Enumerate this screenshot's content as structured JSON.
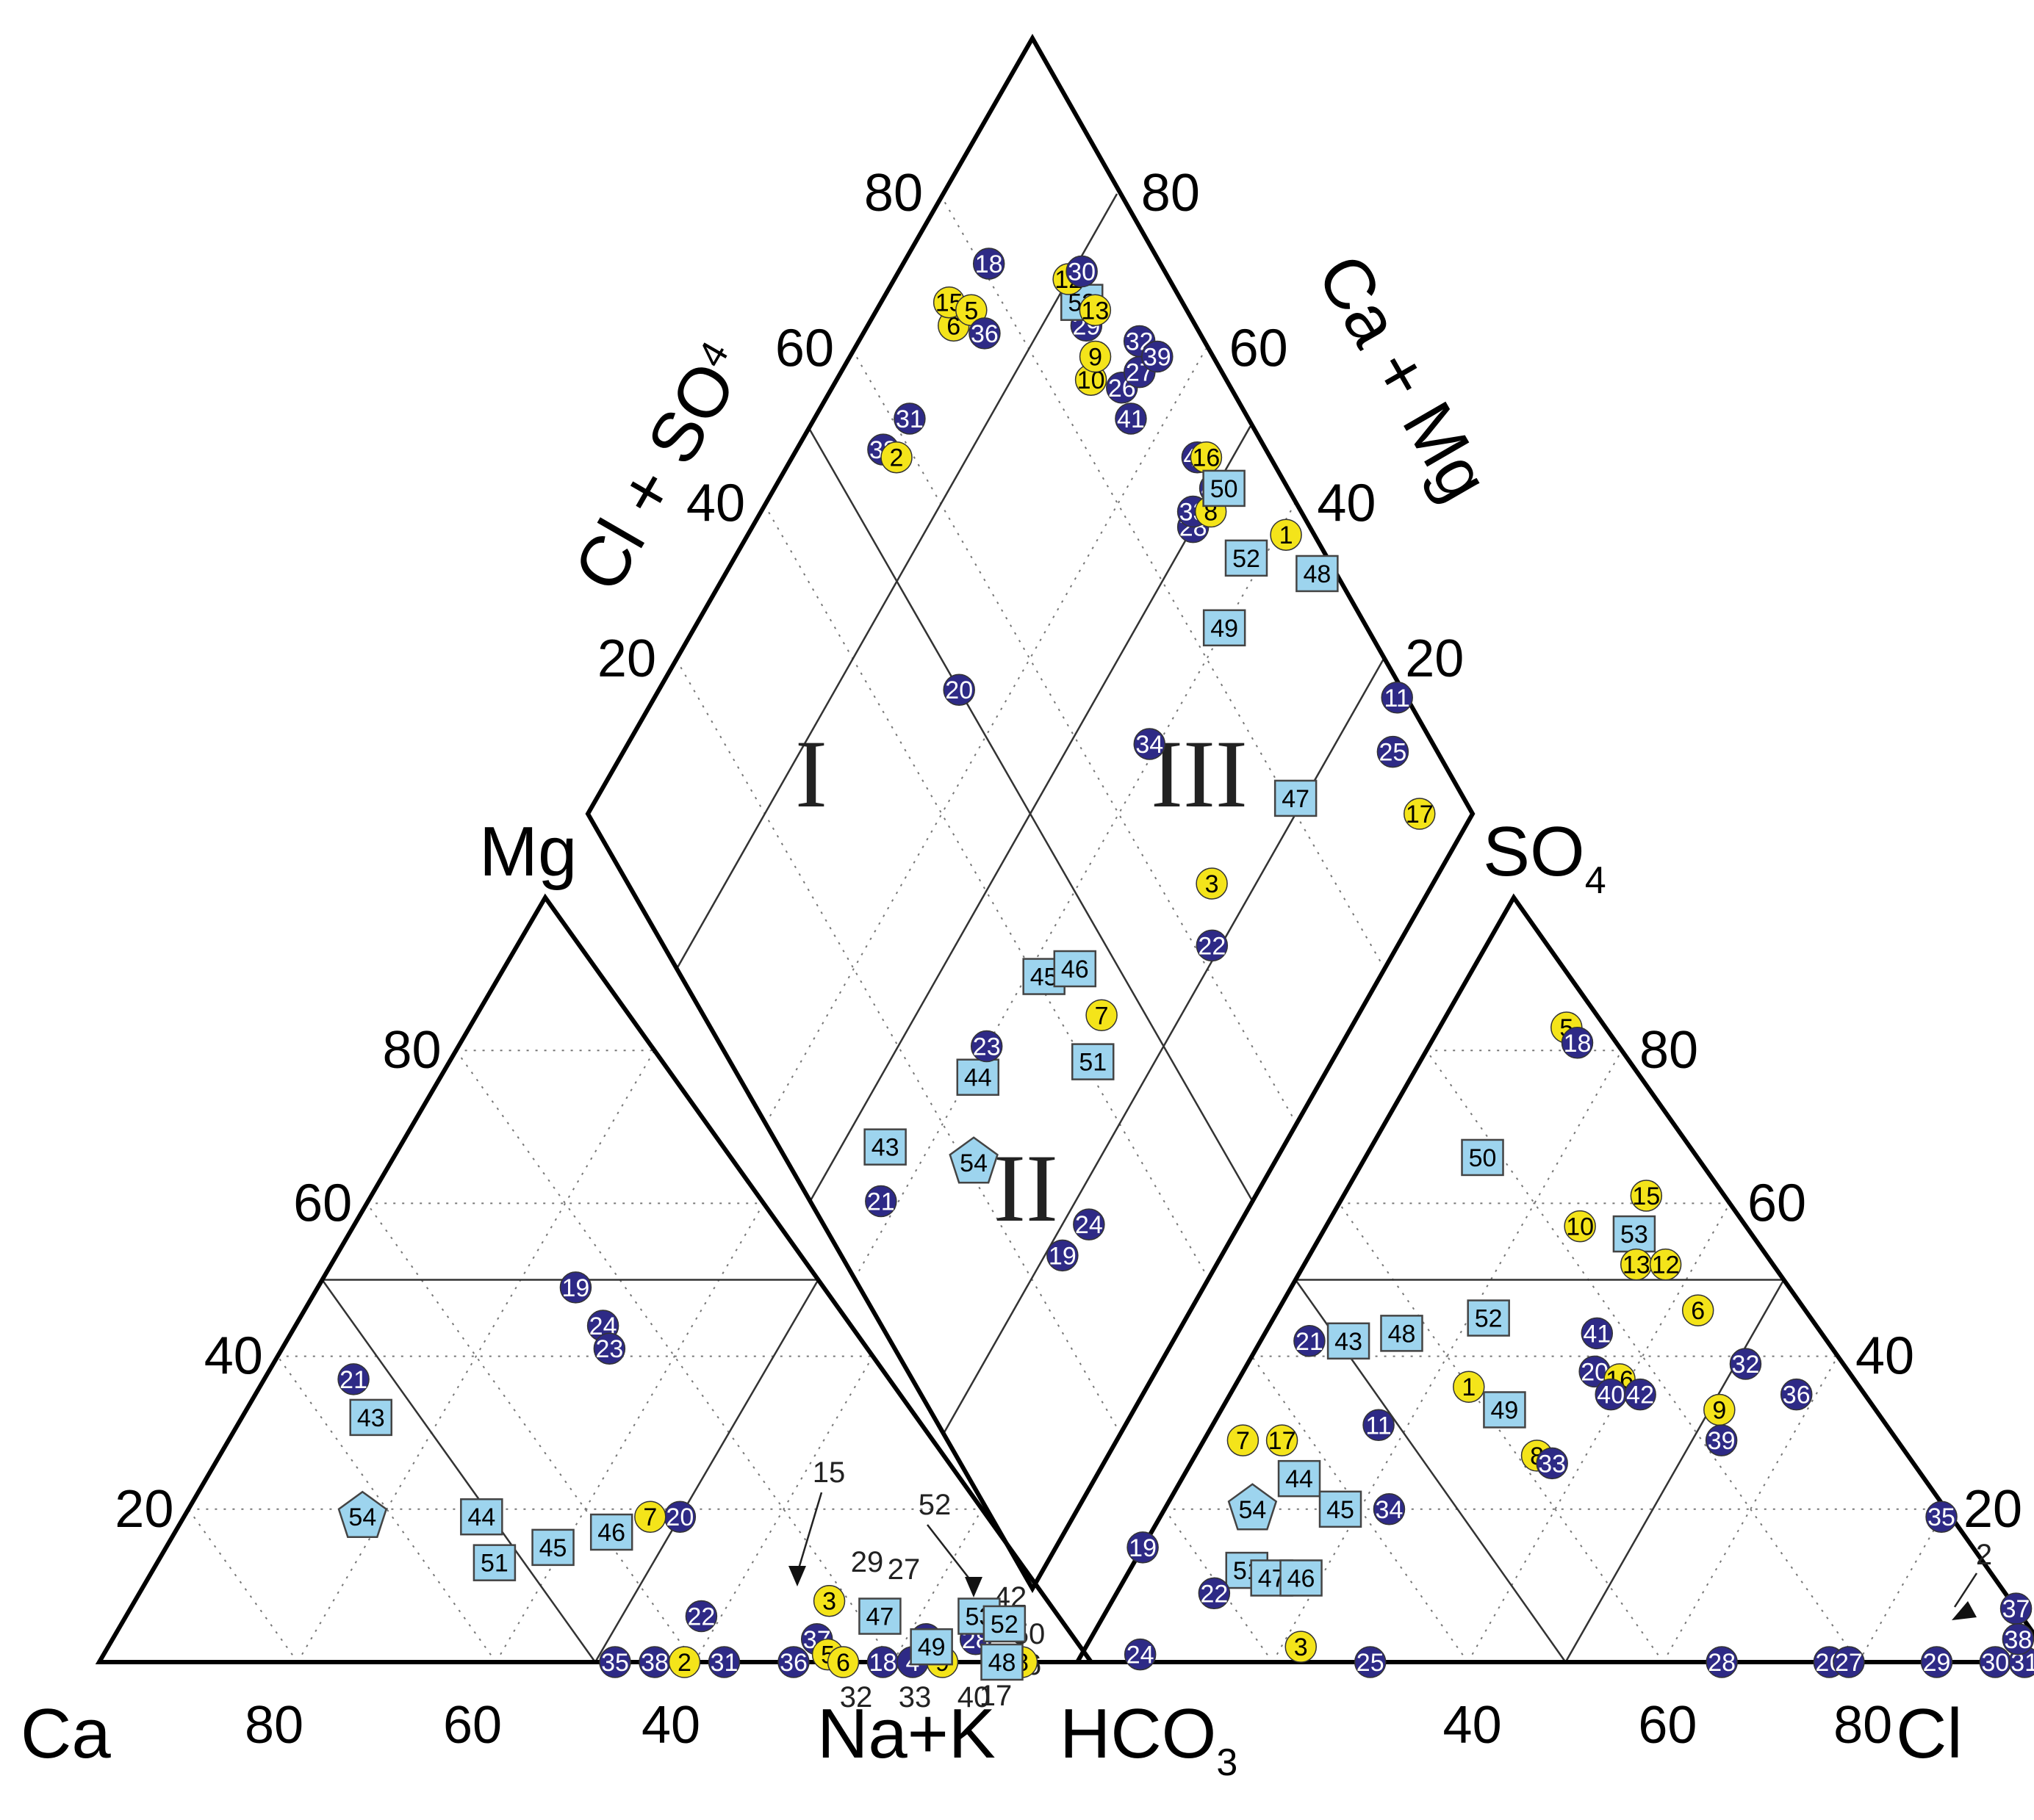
{
  "chart_data": {
    "type": "scatter",
    "subtype": "piper-trilinear",
    "series": [
      {
        "name": "group-circles-blue",
        "marker": "circle",
        "fill": "#2e2a86",
        "text_color": "#ffffff"
      },
      {
        "name": "group-circles-yellow",
        "marker": "circle",
        "fill": "#f4e41a",
        "text_color": "#000000"
      },
      {
        "name": "group-squares",
        "marker": "square",
        "fill": "#9dd4ee",
        "text_color": "#000000"
      },
      {
        "name": "group-pentagon",
        "marker": "pentagon",
        "fill": "#9dd4ee",
        "text_color": "#000000"
      }
    ],
    "cation_triangle": {
      "corners": {
        "left": "Ca",
        "top": "Mg",
        "right": "Na+K"
      },
      "tick_labels_left_edge": [
        "20",
        "40",
        "60",
        "80"
      ],
      "tick_labels_bottom_edge": [
        "80",
        "60",
        "40"
      ],
      "points": [
        {
          "id": "35",
          "series": "group-circles-blue",
          "Mg": 0,
          "NaK": 52
        },
        {
          "id": "38",
          "series": "group-circles-blue",
          "Mg": 0,
          "NaK": 56
        },
        {
          "id": "2",
          "series": "group-circles-yellow",
          "Mg": 0,
          "NaK": 59
        },
        {
          "id": "31",
          "series": "group-circles-blue",
          "Mg": 0,
          "NaK": 63
        },
        {
          "id": "36",
          "series": "group-circles-blue",
          "Mg": 0,
          "NaK": 70
        },
        {
          "id": "37",
          "series": "group-circles-blue",
          "Mg": 3,
          "NaK": 71
        },
        {
          "id": "5",
          "series": "group-circles-yellow",
          "Mg": 1,
          "NaK": 73
        },
        {
          "id": "6",
          "series": "group-circles-yellow",
          "Mg": 0,
          "NaK": 75
        },
        {
          "id": "18",
          "series": "group-circles-blue",
          "Mg": 0,
          "NaK": 79
        },
        {
          "id": "4",
          "series": "group-circles-blue",
          "Mg": 0,
          "NaK": 82
        },
        {
          "id": "9",
          "series": "group-circles-yellow",
          "Mg": 0,
          "NaK": 85
        },
        {
          "id": "8",
          "series": "group-circles-yellow",
          "Mg": 0,
          "NaK": 93
        },
        {
          "id": "3",
          "series": "group-circles-yellow",
          "Mg": 8,
          "NaK": 70
        },
        {
          "id": "22",
          "series": "group-circles-blue",
          "Mg": 6,
          "NaK": 58
        },
        {
          "id": "26",
          "series": "group-circles-blue",
          "Mg": 3,
          "NaK": 82
        },
        {
          "id": "28",
          "series": "group-circles-blue",
          "Mg": 3,
          "NaK": 87
        },
        {
          "id": "19",
          "series": "group-circles-blue",
          "Mg": 49,
          "NaK": 26
        },
        {
          "id": "24",
          "series": "group-circles-blue",
          "Mg": 44,
          "NaK": 31
        },
        {
          "id": "23",
          "series": "group-circles-blue",
          "Mg": 41,
          "NaK": 33
        },
        {
          "id": "21",
          "series": "group-circles-blue",
          "Mg": 37,
          "NaK": 9
        },
        {
          "id": "20",
          "series": "group-circles-blue",
          "Mg": 19,
          "NaK": 50
        },
        {
          "id": "7",
          "series": "group-circles-yellow",
          "Mg": 19,
          "NaK": 47
        },
        {
          "id": "43",
          "series": "group-squares",
          "Mg": 32,
          "NaK": 13
        },
        {
          "id": "44",
          "series": "group-squares",
          "Mg": 19,
          "NaK": 30
        },
        {
          "id": "45",
          "series": "group-squares",
          "Mg": 15,
          "NaK": 39
        },
        {
          "id": "46",
          "series": "group-squares",
          "Mg": 17,
          "NaK": 44
        },
        {
          "id": "51",
          "series": "group-squares",
          "Mg": 13,
          "NaK": 34
        },
        {
          "id": "47",
          "series": "group-squares",
          "Mg": 6,
          "NaK": 76
        },
        {
          "id": "49",
          "series": "group-squares",
          "Mg": 2,
          "NaK": 83
        },
        {
          "id": "53",
          "series": "group-squares",
          "Mg": 6,
          "NaK": 86
        },
        {
          "id": "52",
          "series": "group-squares",
          "Mg": 5,
          "NaK": 89
        },
        {
          "id": "48",
          "series": "group-squares",
          "Mg": 0,
          "NaK": 91
        },
        {
          "id": "54",
          "series": "group-pentagon",
          "Mg": 19,
          "NaK": 18
        }
      ],
      "annotations": [
        "15",
        "52",
        "29",
        "27",
        "42",
        "50",
        "16",
        "17",
        "40",
        "33",
        "32"
      ]
    },
    "anion_triangle": {
      "corners": {
        "left": "HCO3",
        "top": "SO4",
        "right": "Cl"
      },
      "tick_labels_right_edge": [
        "20",
        "40",
        "60",
        "80"
      ],
      "tick_labels_bottom_edge": [
        "40",
        "60",
        "80"
      ],
      "points": [
        {
          "id": "5",
          "series": "group-circles-yellow",
          "SO4": 83,
          "Cl": 13
        },
        {
          "id": "18",
          "series": "group-circles-blue",
          "SO4": 81,
          "Cl": 15
        },
        {
          "id": "50",
          "series": "group-squares",
          "SO4": 66,
          "Cl": 12
        },
        {
          "id": "15",
          "series": "group-circles-yellow",
          "SO4": 61,
          "Cl": 31
        },
        {
          "id": "10",
          "series": "group-circles-yellow",
          "SO4": 57,
          "Cl": 26
        },
        {
          "id": "53",
          "series": "group-squares",
          "SO4": 56,
          "Cl": 32
        },
        {
          "id": "13",
          "series": "group-circles-yellow",
          "SO4": 52,
          "Cl": 34
        },
        {
          "id": "12",
          "series": "group-circles-yellow",
          "SO4": 52,
          "Cl": 37
        },
        {
          "id": "6",
          "series": "group-circles-yellow",
          "SO4": 46,
          "Cl": 43
        },
        {
          "id": "52",
          "series": "group-squares",
          "SO4": 45,
          "Cl": 22
        },
        {
          "id": "41",
          "series": "group-circles-blue",
          "SO4": 43,
          "Cl": 34
        },
        {
          "id": "21",
          "series": "group-circles-blue",
          "SO4": 42,
          "Cl": 5
        },
        {
          "id": "43",
          "series": "group-squares",
          "SO4": 42,
          "Cl": 9
        },
        {
          "id": "48",
          "series": "group-squares",
          "SO4": 43,
          "Cl": 14
        },
        {
          "id": "1",
          "series": "group-circles-yellow",
          "SO4": 36,
          "Cl": 24
        },
        {
          "id": "20",
          "series": "group-circles-blue",
          "SO4": 38,
          "Cl": 36
        },
        {
          "id": "16",
          "series": "group-circles-yellow",
          "SO4": 37,
          "Cl": 39
        },
        {
          "id": "40",
          "series": "group-circles-blue",
          "SO4": 35,
          "Cl": 39
        },
        {
          "id": "42",
          "series": "group-circles-blue",
          "SO4": 35,
          "Cl": 42
        },
        {
          "id": "32",
          "series": "group-circles-blue",
          "SO4": 39,
          "Cl": 51
        },
        {
          "id": "9",
          "series": "group-circles-yellow",
          "SO4": 33,
          "Cl": 51
        },
        {
          "id": "36",
          "series": "group-circles-blue",
          "SO4": 35,
          "Cl": 58
        },
        {
          "id": "49",
          "series": "group-squares",
          "SO4": 33,
          "Cl": 29
        },
        {
          "id": "11",
          "series": "group-circles-blue",
          "SO4": 31,
          "Cl": 17
        },
        {
          "id": "8",
          "series": "group-circles-yellow",
          "SO4": 27,
          "Cl": 35
        },
        {
          "id": "33",
          "series": "group-circles-blue",
          "SO4": 26,
          "Cl": 37
        },
        {
          "id": "39",
          "series": "group-circles-blue",
          "SO4": 29,
          "Cl": 53
        },
        {
          "id": "7",
          "series": "group-circles-yellow",
          "SO4": 29,
          "Cl": 4
        },
        {
          "id": "17",
          "series": "group-circles-yellow",
          "SO4": 29,
          "Cl": 8
        },
        {
          "id": "44",
          "series": "group-squares",
          "SO4": 24,
          "Cl": 12
        },
        {
          "id": "54",
          "series": "group-pentagon",
          "SO4": 20,
          "Cl": 9
        },
        {
          "id": "45",
          "series": "group-squares",
          "SO4": 20,
          "Cl": 18
        },
        {
          "id": "34",
          "series": "group-circles-blue",
          "SO4": 20,
          "Cl": 23
        },
        {
          "id": "19",
          "series": "group-circles-blue",
          "SO4": 15,
          "Cl": 0
        },
        {
          "id": "51",
          "series": "group-squares",
          "SO4": 12,
          "Cl": 12
        },
        {
          "id": "47",
          "series": "group-squares",
          "SO4": 11,
          "Cl": 15
        },
        {
          "id": "46",
          "series": "group-squares",
          "SO4": 11,
          "Cl": 18
        },
        {
          "id": "22",
          "series": "group-circles-blue",
          "SO4": 9,
          "Cl": 10
        },
        {
          "id": "3",
          "series": "group-circles-yellow",
          "SO4": 2,
          "Cl": 22
        },
        {
          "id": "24",
          "series": "group-circles-blue",
          "SO4": 1,
          "Cl": 6
        },
        {
          "id": "25",
          "series": "group-circles-blue",
          "SO4": 0,
          "Cl": 30
        },
        {
          "id": "35",
          "series": "group-circles-blue",
          "SO4": 19,
          "Cl": 80
        },
        {
          "id": "28",
          "series": "group-circles-blue",
          "SO4": 0,
          "Cl": 66
        },
        {
          "id": "26",
          "series": "group-circles-blue",
          "SO4": 0,
          "Cl": 77
        },
        {
          "id": "27",
          "series": "group-circles-blue",
          "SO4": 0,
          "Cl": 79
        },
        {
          "id": "29",
          "series": "group-circles-blue",
          "SO4": 0,
          "Cl": 88
        },
        {
          "id": "30",
          "series": "group-circles-blue",
          "SO4": 0,
          "Cl": 94
        },
        {
          "id": "31",
          "series": "group-circles-blue",
          "SO4": 0,
          "Cl": 97
        },
        {
          "id": "37",
          "series": "group-circles-blue",
          "SO4": 7,
          "Cl": 93
        },
        {
          "id": "38",
          "series": "group-circles-blue",
          "SO4": 3,
          "Cl": 95
        }
      ],
      "annotations": [
        "2"
      ]
    },
    "diamond": {
      "corners": {
        "top": "Cl+SO4 / Ca+Mg",
        "left": "Mg",
        "right": "SO4",
        "bottom": "Na+K / HCO3"
      },
      "tick_labels_upper_left_edge": [
        "20",
        "40",
        "60",
        "80"
      ],
      "tick_labels_upper_right_edge": [
        "20",
        "40",
        "60",
        "80"
      ],
      "region_labels": [
        "I",
        "II",
        "III"
      ],
      "points": [
        {
          "id": "38",
          "series": "group-circles-blue",
          "ClSO4": 90,
          "NaK": 57
        },
        {
          "id": "2",
          "series": "group-circles-yellow",
          "ClSO4": 88,
          "NaK": 58
        },
        {
          "id": "31",
          "series": "group-circles-blue",
          "ClSO4": 89,
          "NaK": 62
        },
        {
          "id": "20",
          "series": "group-circles-blue",
          "ClSO4": 66,
          "NaK": 50
        },
        {
          "id": "21",
          "series": "group-circles-blue",
          "ClSO4": 42,
          "NaK": 8
        },
        {
          "id": "43",
          "series": "group-squares",
          "ClSO4": 45,
          "NaK": 12
        },
        {
          "id": "54",
          "series": "group-pentagon",
          "ClSO4": 34,
          "NaK": 21
        },
        {
          "id": "44",
          "series": "group-squares",
          "ClSO4": 39,
          "NaK": 27
        },
        {
          "id": "23",
          "series": "group-circles-blue",
          "ClSO4": 40,
          "NaK": 30
        },
        {
          "id": "6",
          "series": "group-circles-yellow",
          "ClSO4": 90,
          "NaK": 73
        },
        {
          "id": "15",
          "series": "group-circles-yellow",
          "ClSO4": 92,
          "NaK": 74
        },
        {
          "id": "5",
          "series": "group-circles-yellow",
          "ClSO4": 89,
          "NaK": 76
        },
        {
          "id": "36",
          "series": "group-circles-blue",
          "ClSO4": 86,
          "NaK": 76
        },
        {
          "id": "18",
          "series": "group-circles-blue",
          "ClSO4": 90,
          "NaK": 81
        },
        {
          "id": "45",
          "series": "group-squares",
          "ClSO4": 38,
          "NaK": 41
        },
        {
          "id": "46",
          "series": "group-squares",
          "ClSO4": 35,
          "NaK": 45
        },
        {
          "id": "19",
          "series": "group-circles-blue",
          "ClSO4": 18,
          "NaK": 25
        },
        {
          "id": "24",
          "series": "group-circles-blue",
          "ClSO4": 17,
          "NaK": 30
        },
        {
          "id": "51",
          "series": "group-squares",
          "ClSO4": 27,
          "NaK": 41
        },
        {
          "id": "7",
          "series": "group-circles-yellow",
          "ClSO4": 29,
          "NaK": 45
        },
        {
          "id": "29",
          "series": "group-circles-blue",
          "ClSO4": 75,
          "NaK": 88
        },
        {
          "id": "53",
          "series": "group-squares",
          "ClSO4": 77,
          "NaK": 89
        },
        {
          "id": "12",
          "series": "group-circles-yellow",
          "ClSO4": 80,
          "NaK": 89
        },
        {
          "id": "30",
          "series": "group-circles-blue",
          "ClSO4": 79,
          "NaK": 91
        },
        {
          "id": "10",
          "series": "group-circles-yellow",
          "ClSO4": 71,
          "NaK": 85
        },
        {
          "id": "9",
          "series": "group-circles-yellow",
          "ClSO4": 72,
          "NaK": 87
        },
        {
          "id": "13",
          "series": "group-circles-yellow",
          "ClSO4": 75,
          "NaK": 90
        },
        {
          "id": "26",
          "series": "group-circles-blue",
          "ClSO4": 67,
          "NaK": 88
        },
        {
          "id": "41",
          "series": "group-circles-blue",
          "ClSO4": 64,
          "NaK": 87
        },
        {
          "id": "27",
          "series": "group-circles-blue",
          "ClSO4": 66,
          "NaK": 91
        },
        {
          "id": "32",
          "series": "group-circles-blue",
          "ClSO4": 68,
          "NaK": 93
        },
        {
          "id": "39",
          "series": "group-circles-blue",
          "ClSO4": 65,
          "NaK": 94
        },
        {
          "id": "34",
          "series": "group-circles-blue",
          "ClSO4": 41,
          "NaK": 68
        },
        {
          "id": "28",
          "series": "group-circles-blue",
          "ClSO4": 50,
          "NaK": 87
        },
        {
          "id": "33",
          "series": "group-circles-blue",
          "ClSO4": 51,
          "NaK": 88
        },
        {
          "id": "42",
          "series": "group-circles-blue",
          "ClSO4": 54,
          "NaK": 92
        },
        {
          "id": "8",
          "series": "group-circles-yellow",
          "ClSO4": 49,
          "NaK": 90
        },
        {
          "id": "40",
          "series": "group-circles-blue",
          "ClSO4": 50,
          "NaK": 92
        },
        {
          "id": "16",
          "series": "group-circles-yellow",
          "ClSO4": 53,
          "NaK": 93
        },
        {
          "id": "49",
          "series": "group-squares",
          "ClSO4": 40,
          "NaK": 84
        },
        {
          "id": "50",
          "series": "group-squares",
          "ClSO4": 49,
          "NaK": 93
        },
        {
          "id": "52",
          "series": "group-squares",
          "ClSO4": 42,
          "NaK": 91
        },
        {
          "id": "22",
          "series": "group-circles-blue",
          "ClSO4": 21,
          "NaK": 62
        },
        {
          "id": "3",
          "series": "group-circles-yellow",
          "ClSO4": 25,
          "NaK": 66
        },
        {
          "id": "47",
          "series": "group-squares",
          "ClSO4": 21,
          "NaK": 81
        },
        {
          "id": "1",
          "series": "group-circles-yellow",
          "ClSO4": 39,
          "NaK": 97
        },
        {
          "id": "48",
          "series": "group-squares",
          "ClSO4": 33,
          "NaK": 98
        },
        {
          "id": "25",
          "series": "group-circles-blue",
          "ClSO4": 13,
          "NaK": 95
        },
        {
          "id": "11",
          "series": "group-circles-blue",
          "ClSO4": 16,
          "NaK": 99
        },
        {
          "id": "17",
          "series": "group-circles-yellow",
          "ClSO4": 6,
          "NaK": 94
        }
      ]
    }
  },
  "labels": {
    "cation_left": "Ca",
    "cation_top": "Mg",
    "cation_right": "Na+K",
    "anion_left_main": "HCO",
    "anion_left_sub": "3",
    "anion_top_main": "SO",
    "anion_top_sub": "4",
    "anion_right": "Cl",
    "diamond_left_main": "Cl + SO",
    "diamond_left_sub": "4",
    "diamond_right": "Ca + Mg",
    "region_I": "I",
    "region_II": "II",
    "region_III": "III"
  }
}
